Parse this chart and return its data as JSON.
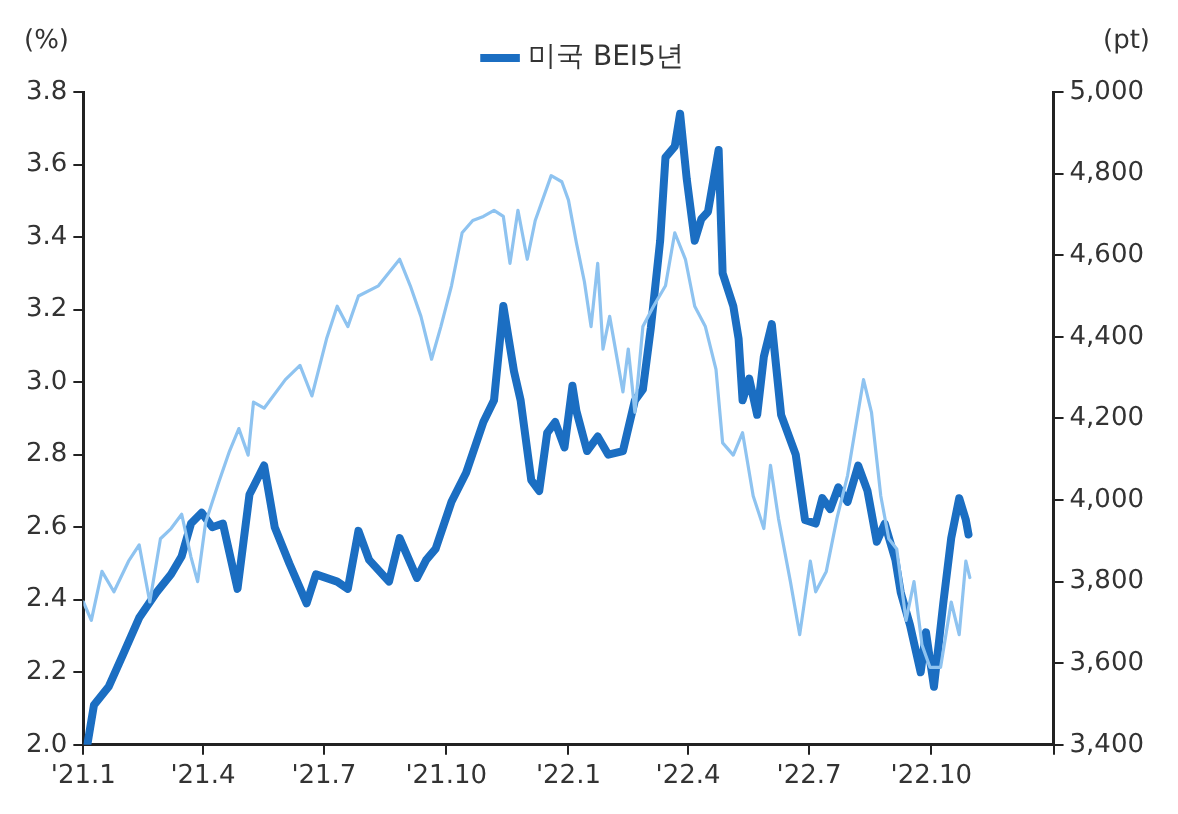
{
  "chart_data": {
    "type": "line",
    "ylabel": "(%)",
    "y2label": "(pt)",
    "legend": "top",
    "grid": false,
    "marker": "none",
    "line_style": "solid",
    "xlim": [
      "2021-01-01",
      "2023-01-01"
    ],
    "xticks": [
      {
        "value": "2021-01-01",
        "label": "'21.1"
      },
      {
        "value": "2021-04-01",
        "label": "'21.4"
      },
      {
        "value": "2021-07-01",
        "label": "'21.7"
      },
      {
        "value": "2021-10-01",
        "label": "'21.10"
      },
      {
        "value": "2022-01-01",
        "label": "'22.1"
      },
      {
        "value": "2022-04-01",
        "label": "'22.4"
      },
      {
        "value": "2022-07-01",
        "label": "'22.7"
      },
      {
        "value": "2022-10-01",
        "label": "'22.10"
      },
      {
        "value": "2023-01-01",
        "label": null
      }
    ],
    "ylim": [
      2.0,
      3.8
    ],
    "yticks": [
      {
        "value": 2,
        "label": "2.0"
      },
      {
        "value": 2.2,
        "label": "2.2"
      },
      {
        "value": 2.4,
        "label": "2.4"
      },
      {
        "value": 2.6,
        "label": "2.6"
      },
      {
        "value": 2.8,
        "label": "2.8"
      },
      {
        "value": 3,
        "label": "3.0"
      },
      {
        "value": 3.2,
        "label": "3.2"
      },
      {
        "value": 3.4,
        "label": "3.4"
      },
      {
        "value": 3.6,
        "label": "3.6"
      },
      {
        "value": 3.8,
        "label": "3.8"
      }
    ],
    "y2lim": [
      3400,
      5000
    ],
    "y2ticks": [
      {
        "value": 3400,
        "label": "3,400"
      },
      {
        "value": 3600,
        "label": "3,600"
      },
      {
        "value": 3800,
        "label": "3,800"
      },
      {
        "value": 4000,
        "label": "4,000"
      },
      {
        "value": 4200,
        "label": "4,200"
      },
      {
        "value": 4400,
        "label": "4,400"
      },
      {
        "value": 4600,
        "label": "4,600"
      },
      {
        "value": 4800,
        "label": "4,800"
      },
      {
        "value": 5000,
        "label": "5,000"
      }
    ],
    "series": [
      {
        "name": "미국 BEI5년",
        "color": "#1b6ec2",
        "x": [
          "2021-01-04",
          "2021-01-09",
          "2021-01-20",
          "2021-01-31",
          "2021-02-12",
          "2021-02-25",
          "2021-03-08",
          "2021-03-16",
          "2021-03-23",
          "2021-03-31",
          "2021-04-08",
          "2021-04-16",
          "2021-04-27",
          "2021-05-06",
          "2021-05-17",
          "2021-05-25",
          "2021-06-05",
          "2021-06-18",
          "2021-06-25",
          "2021-07-11",
          "2021-07-19",
          "2021-07-27",
          "2021-08-04",
          "2021-08-19",
          "2021-08-27",
          "2021-09-09",
          "2021-09-16",
          "2021-09-23",
          "2021-10-05",
          "2021-10-16",
          "2021-10-29",
          "2021-11-06",
          "2021-11-13",
          "2021-11-21",
          "2021-11-26",
          "2021-12-04",
          "2021-12-10",
          "2021-12-16",
          "2021-12-22",
          "2021-12-29",
          "2022-01-04",
          "2022-01-07",
          "2022-01-15",
          "2022-01-23",
          "2022-01-31",
          "2022-02-11",
          "2022-02-20",
          "2022-02-26",
          "2022-03-04",
          "2022-03-11",
          "2022-03-15",
          "2022-03-22",
          "2022-03-26",
          "2022-03-31",
          "2022-04-06",
          "2022-04-11",
          "2022-04-16",
          "2022-04-24",
          "2022-04-27",
          "2022-05-05",
          "2022-05-09",
          "2022-05-12",
          "2022-05-17",
          "2022-05-23",
          "2022-05-28",
          "2022-06-03",
          "2022-06-10",
          "2022-06-21",
          "2022-06-28",
          "2022-07-06",
          "2022-07-11",
          "2022-07-17",
          "2022-07-23",
          "2022-07-30",
          "2022-08-07",
          "2022-08-14",
          "2022-08-21",
          "2022-08-27",
          "2022-09-04",
          "2022-09-08",
          "2022-09-15",
          "2022-09-23",
          "2022-09-27",
          "2022-10-03",
          "2022-10-10",
          "2022-10-16",
          "2022-10-22",
          "2022-10-27",
          "2022-10-29"
        ],
        "values": [
          2.0,
          2.11,
          2.16,
          2.25,
          2.35,
          2.42,
          2.47,
          2.52,
          2.61,
          2.64,
          2.6,
          2.61,
          2.43,
          2.69,
          2.77,
          2.6,
          2.5,
          2.39,
          2.47,
          2.45,
          2.43,
          2.59,
          2.51,
          2.45,
          2.57,
          2.46,
          2.51,
          2.54,
          2.67,
          2.75,
          2.89,
          2.95,
          3.21,
          3.03,
          2.95,
          2.73,
          2.7,
          2.86,
          2.89,
          2.82,
          2.99,
          2.92,
          2.81,
          2.85,
          2.8,
          2.81,
          2.95,
          2.98,
          3.15,
          3.39,
          3.62,
          3.65,
          3.74,
          3.56,
          3.39,
          3.45,
          3.47,
          3.64,
          3.3,
          3.21,
          3.12,
          2.95,
          3.01,
          2.91,
          3.07,
          3.16,
          2.91,
          2.8,
          2.62,
          2.61,
          2.68,
          2.65,
          2.71,
          2.67,
          2.77,
          2.7,
          2.56,
          2.61,
          2.51,
          2.42,
          2.33,
          2.2,
          2.31,
          2.16,
          2.39,
          2.57,
          2.68,
          2.62,
          2.58
        ]
      },
      {
        "color": "#8ec3f0",
        "axis": "y2",
        "x": [
          "2021-01-01",
          "2021-01-07",
          "2021-01-15",
          "2021-01-24",
          "2021-02-04",
          "2021-02-12",
          "2021-02-20",
          "2021-02-28",
          "2021-03-08",
          "2021-03-16",
          "2021-03-23",
          "2021-03-28",
          "2021-04-03",
          "2021-04-13",
          "2021-04-21",
          "2021-04-28",
          "2021-05-05",
          "2021-05-09",
          "2021-05-17",
          "2021-06-02",
          "2021-06-13",
          "2021-06-22",
          "2021-07-03",
          "2021-07-11",
          "2021-07-19",
          "2021-07-27",
          "2021-08-11",
          "2021-08-27",
          "2021-09-04",
          "2021-09-12",
          "2021-09-20",
          "2021-09-27",
          "2021-10-05",
          "2021-10-13",
          "2021-10-21",
          "2021-10-29",
          "2021-11-06",
          "2021-11-13",
          "2021-11-18",
          "2021-11-24",
          "2021-12-01",
          "2021-12-07",
          "2021-12-19",
          "2021-12-27",
          "2022-01-01",
          "2022-01-07",
          "2022-01-13",
          "2022-01-18",
          "2022-01-23",
          "2022-01-27",
          "2022-02-01",
          "2022-02-11",
          "2022-02-15",
          "2022-02-20",
          "2022-02-26",
          "2022-03-06",
          "2022-03-15",
          "2022-03-22",
          "2022-03-30",
          "2022-04-06",
          "2022-04-14",
          "2022-04-22",
          "2022-04-27",
          "2022-05-05",
          "2022-05-12",
          "2022-05-20",
          "2022-05-28",
          "2022-06-02",
          "2022-06-08",
          "2022-06-17",
          "2022-06-24",
          "2022-07-02",
          "2022-07-06",
          "2022-07-14",
          "2022-07-22",
          "2022-07-30",
          "2022-08-11",
          "2022-08-17",
          "2022-08-24",
          "2022-08-30",
          "2022-09-05",
          "2022-09-12",
          "2022-09-18",
          "2022-09-24",
          "2022-09-30",
          "2022-10-08",
          "2022-10-16",
          "2022-10-22",
          "2022-10-27",
          "2022-10-30"
        ],
        "values": [
          3750,
          3705,
          3825,
          3775,
          3850,
          3890,
          3750,
          3905,
          3930,
          3965,
          3860,
          3800,
          3945,
          4045,
          4120,
          4175,
          4110,
          4240,
          4225,
          4295,
          4330,
          4255,
          4395,
          4475,
          4425,
          4500,
          4525,
          4590,
          4525,
          4450,
          4345,
          4425,
          4525,
          4655,
          4685,
          4695,
          4710,
          4695,
          4580,
          4710,
          4590,
          4685,
          4795,
          4780,
          4735,
          4630,
          4535,
          4425,
          4580,
          4370,
          4450,
          4265,
          4370,
          4215,
          4425,
          4475,
          4525,
          4655,
          4590,
          4475,
          4425,
          4320,
          4140,
          4110,
          4165,
          4010,
          3930,
          4085,
          3955,
          3800,
          3670,
          3850,
          3775,
          3825,
          3955,
          4060,
          4295,
          4215,
          4010,
          3905,
          3880,
          3705,
          3800,
          3645,
          3590,
          3590,
          3750,
          3670,
          3850,
          3810
        ]
      }
    ]
  }
}
